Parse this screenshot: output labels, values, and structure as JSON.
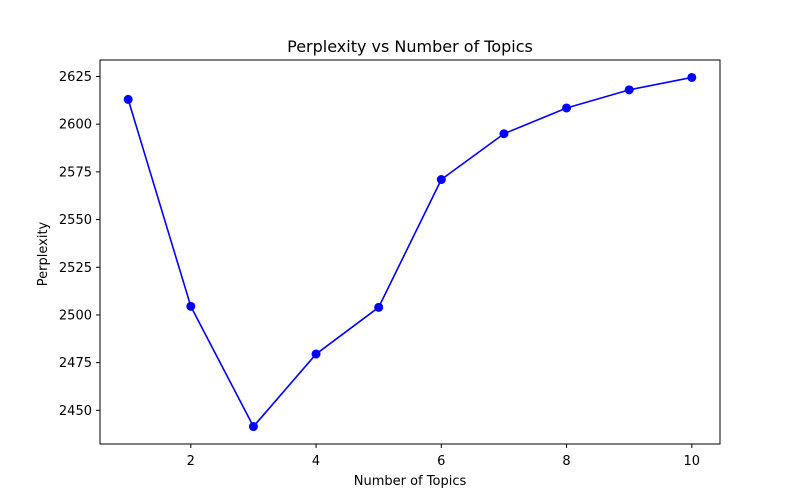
{
  "chart_data": {
    "type": "line",
    "title": "Perplexity vs Number of Topics",
    "xlabel": "Number of Topics",
    "ylabel": "Perplexity",
    "x": [
      1,
      2,
      3,
      4,
      5,
      6,
      7,
      8,
      9,
      10
    ],
    "series": [
      {
        "values": [
          2613,
          2504.5,
          2441.5,
          2479.5,
          2504,
          2571,
          2595,
          2608.5,
          2618,
          2624.5
        ],
        "color": "#0000ff",
        "marker": "circle"
      }
    ],
    "xticks": [
      2,
      4,
      6,
      8,
      10
    ],
    "xtick_labels": [
      "2",
      "4",
      "6",
      "8",
      "10"
    ],
    "yticks": [
      2450,
      2475,
      2500,
      2525,
      2550,
      2575,
      2600,
      2625
    ],
    "ytick_labels": [
      "2450",
      "2475",
      "2500",
      "2525",
      "2550",
      "2575",
      "2600",
      "2625"
    ],
    "xlim": [
      0.55,
      10.45
    ],
    "ylim": [
      2432.35,
      2633.65
    ],
    "grid": false,
    "legend": "none"
  }
}
